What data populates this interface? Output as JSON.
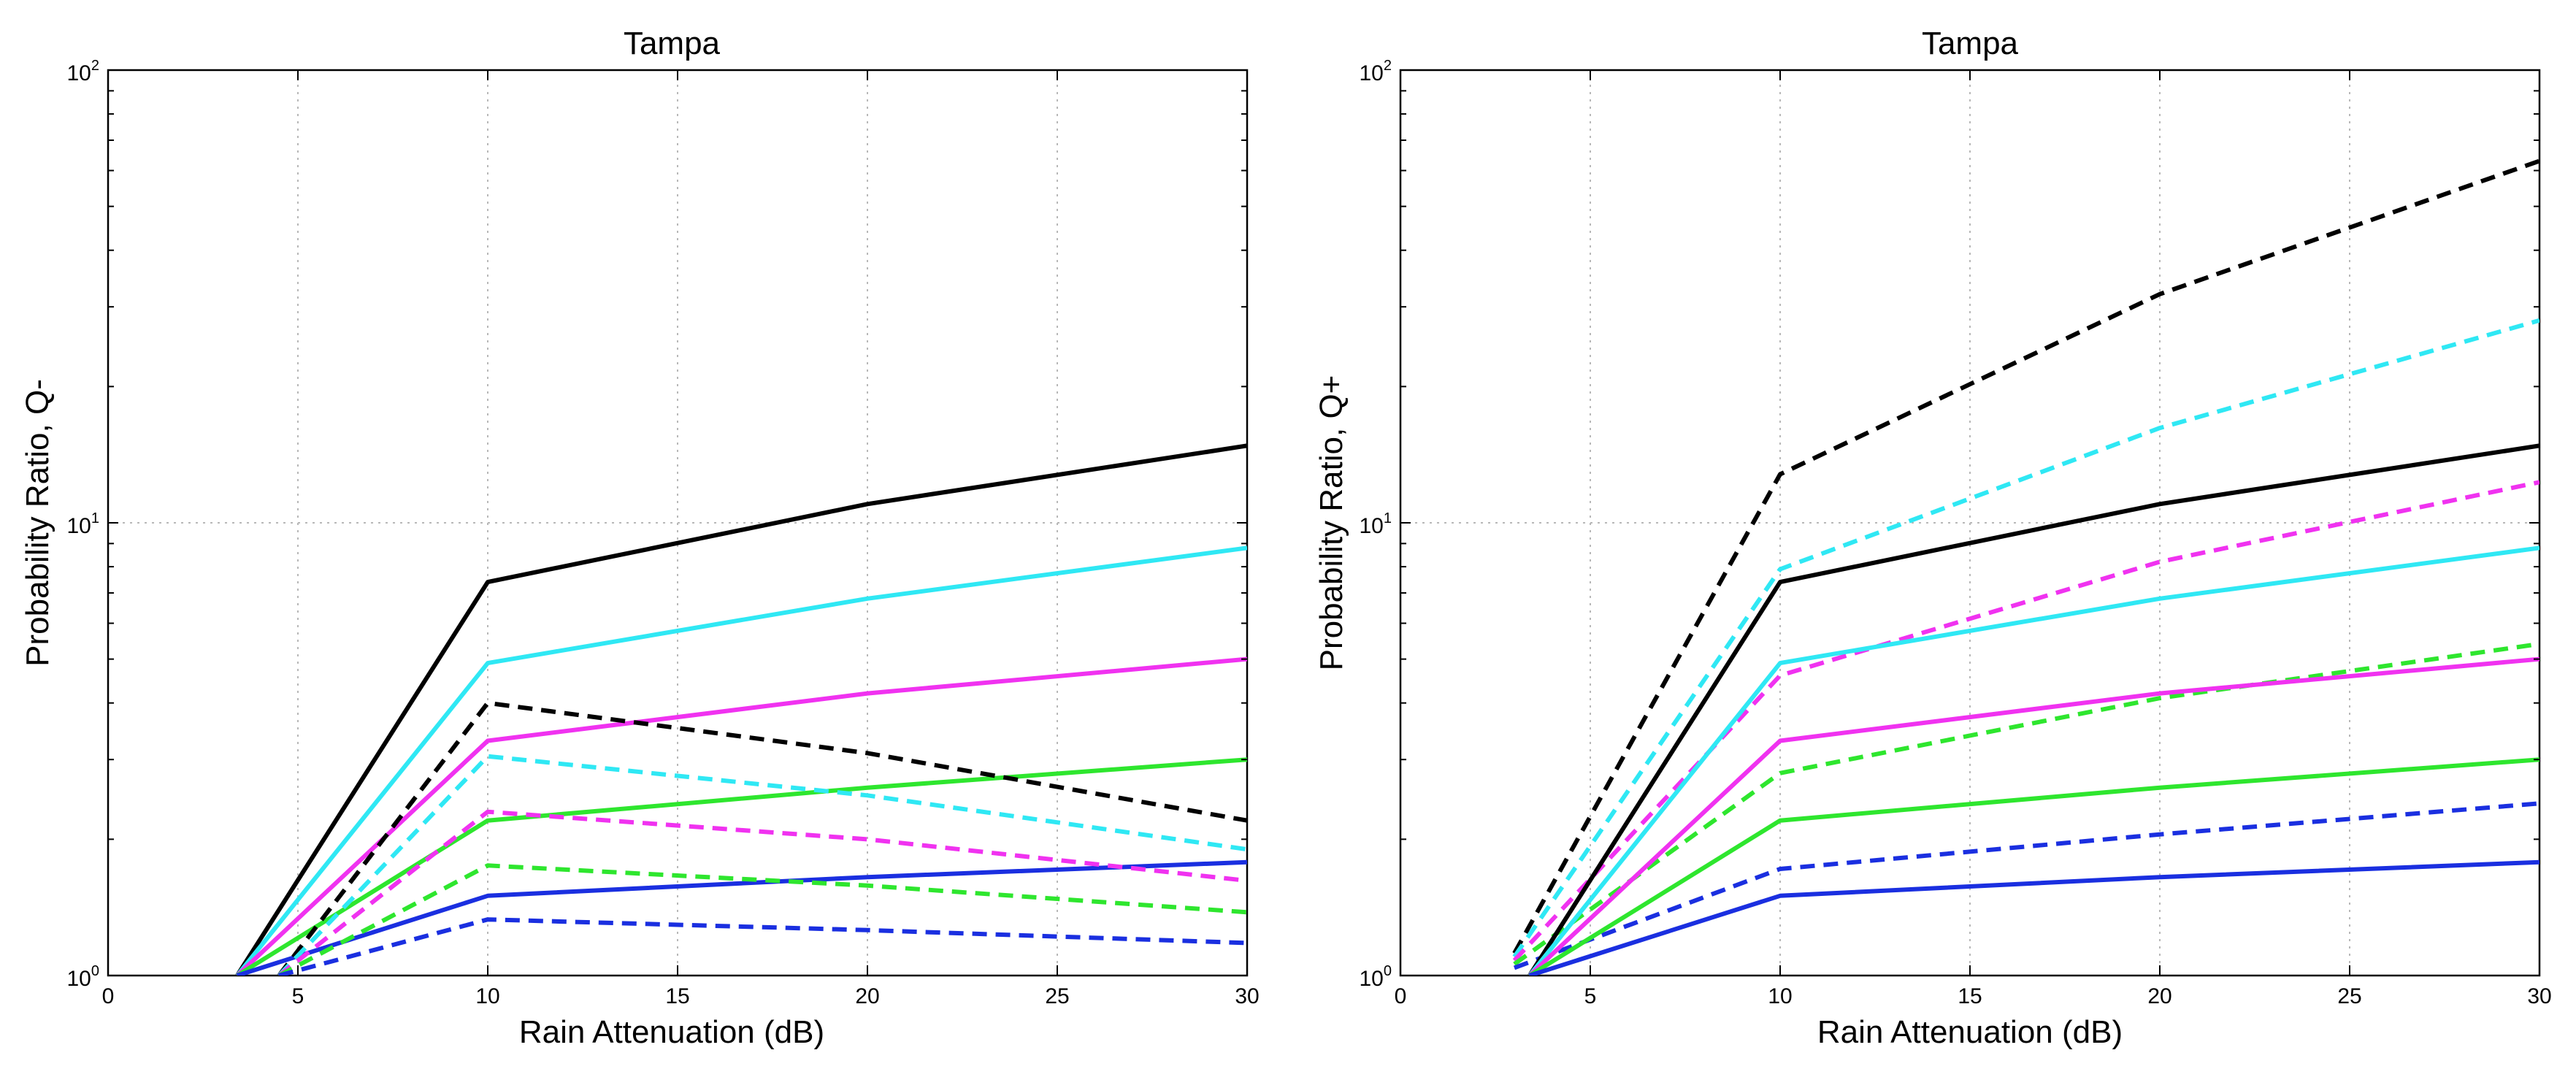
{
  "chart_data": [
    {
      "type": "line",
      "title": "Tampa",
      "xlabel": "Rain Attenuation (dB)",
      "ylabel": "Probability Ratio, Q-",
      "xlim": [
        0,
        30
      ],
      "ylim": [
        1,
        100
      ],
      "yscale": "log",
      "grid": true,
      "xticks": [
        "0",
        "5",
        "10",
        "15",
        "20",
        "25",
        "30"
      ],
      "yticks": [
        {
          "base": "10",
          "exp": "0"
        },
        {
          "base": "10",
          "exp": "1"
        },
        {
          "base": "10",
          "exp": "2"
        }
      ],
      "series": [
        {
          "name": "black solid",
          "color": "#000000",
          "dash": false,
          "x": [
            3.4,
            10,
            20,
            30
          ],
          "y": [
            1.0,
            7.4,
            11.0,
            14.8
          ]
        },
        {
          "name": "cyan solid",
          "color": "#2fe8f4",
          "dash": false,
          "x": [
            3.4,
            10,
            20,
            30
          ],
          "y": [
            1.0,
            4.9,
            6.8,
            8.8
          ]
        },
        {
          "name": "magenta solid",
          "color": "#f032f0",
          "dash": false,
          "x": [
            3.4,
            10,
            20,
            30
          ],
          "y": [
            1.0,
            3.3,
            4.2,
            5.0
          ]
        },
        {
          "name": "green solid",
          "color": "#2ee62e",
          "dash": false,
          "x": [
            3.4,
            10,
            20,
            30
          ],
          "y": [
            1.0,
            2.2,
            2.6,
            3.0
          ]
        },
        {
          "name": "blue solid",
          "color": "#1a2fe0",
          "dash": false,
          "x": [
            3.4,
            10,
            20,
            30
          ],
          "y": [
            1.0,
            1.5,
            1.65,
            1.78
          ]
        },
        {
          "name": "black dashed",
          "color": "#000000",
          "dash": true,
          "x": [
            4.5,
            10,
            20,
            30
          ],
          "y": [
            1.0,
            4.0,
            3.1,
            2.2
          ]
        },
        {
          "name": "cyan dashed",
          "color": "#2fe8f4",
          "dash": true,
          "x": [
            4.5,
            10,
            20,
            30
          ],
          "y": [
            1.0,
            3.05,
            2.5,
            1.9
          ]
        },
        {
          "name": "magenta dashed",
          "color": "#f032f0",
          "dash": true,
          "x": [
            4.5,
            10,
            20,
            30
          ],
          "y": [
            1.0,
            2.3,
            2.0,
            1.62
          ]
        },
        {
          "name": "green dashed",
          "color": "#2ee62e",
          "dash": true,
          "x": [
            4.5,
            10,
            20,
            30
          ],
          "y": [
            1.0,
            1.75,
            1.58,
            1.38
          ]
        },
        {
          "name": "blue dashed",
          "color": "#1a2fe0",
          "dash": true,
          "x": [
            4.5,
            10,
            20,
            30
          ],
          "y": [
            1.0,
            1.33,
            1.26,
            1.18
          ]
        }
      ]
    },
    {
      "type": "line",
      "title": "Tampa",
      "xlabel": "Rain Attenuation (dB)",
      "ylabel": "Probability Ratio, Q+",
      "xlim": [
        0,
        30
      ],
      "ylim": [
        1,
        100
      ],
      "yscale": "log",
      "grid": true,
      "xticks": [
        "0",
        "5",
        "10",
        "15",
        "20",
        "25",
        "30"
      ],
      "yticks": [
        {
          "base": "10",
          "exp": "0"
        },
        {
          "base": "10",
          "exp": "1"
        },
        {
          "base": "10",
          "exp": "2"
        }
      ],
      "series": [
        {
          "name": "black dashed",
          "color": "#000000",
          "dash": true,
          "x": [
            3.0,
            10,
            20,
            30
          ],
          "y": [
            1.12,
            12.8,
            32,
            63
          ]
        },
        {
          "name": "cyan dashed",
          "color": "#2fe8f4",
          "dash": true,
          "x": [
            3.0,
            10,
            20,
            30
          ],
          "y": [
            1.1,
            7.9,
            16.2,
            28
          ]
        },
        {
          "name": "magenta dashed",
          "color": "#f032f0",
          "dash": true,
          "x": [
            3.0,
            10,
            20,
            30
          ],
          "y": [
            1.08,
            4.6,
            8.2,
            12.3
          ]
        },
        {
          "name": "green dashed",
          "color": "#2ee62e",
          "dash": true,
          "x": [
            3.0,
            10,
            20,
            30
          ],
          "y": [
            1.06,
            2.8,
            4.1,
            5.4
          ]
        },
        {
          "name": "blue dashed",
          "color": "#1a2fe0",
          "dash": true,
          "x": [
            3.0,
            10,
            20,
            30
          ],
          "y": [
            1.04,
            1.72,
            2.05,
            2.4
          ]
        },
        {
          "name": "black solid",
          "color": "#000000",
          "dash": false,
          "x": [
            3.4,
            10,
            20,
            30
          ],
          "y": [
            1.0,
            7.4,
            11.0,
            14.8
          ]
        },
        {
          "name": "cyan solid",
          "color": "#2fe8f4",
          "dash": false,
          "x": [
            3.4,
            10,
            20,
            30
          ],
          "y": [
            1.0,
            4.9,
            6.8,
            8.8
          ]
        },
        {
          "name": "magenta solid",
          "color": "#f032f0",
          "dash": false,
          "x": [
            3.4,
            10,
            20,
            30
          ],
          "y": [
            1.0,
            3.3,
            4.2,
            5.0
          ]
        },
        {
          "name": "green solid",
          "color": "#2ee62e",
          "dash": false,
          "x": [
            3.4,
            10,
            20,
            30
          ],
          "y": [
            1.0,
            2.2,
            2.6,
            3.0
          ]
        },
        {
          "name": "blue solid",
          "color": "#1a2fe0",
          "dash": false,
          "x": [
            3.4,
            10,
            20,
            30
          ],
          "y": [
            1.0,
            1.5,
            1.65,
            1.78
          ]
        }
      ]
    }
  ]
}
